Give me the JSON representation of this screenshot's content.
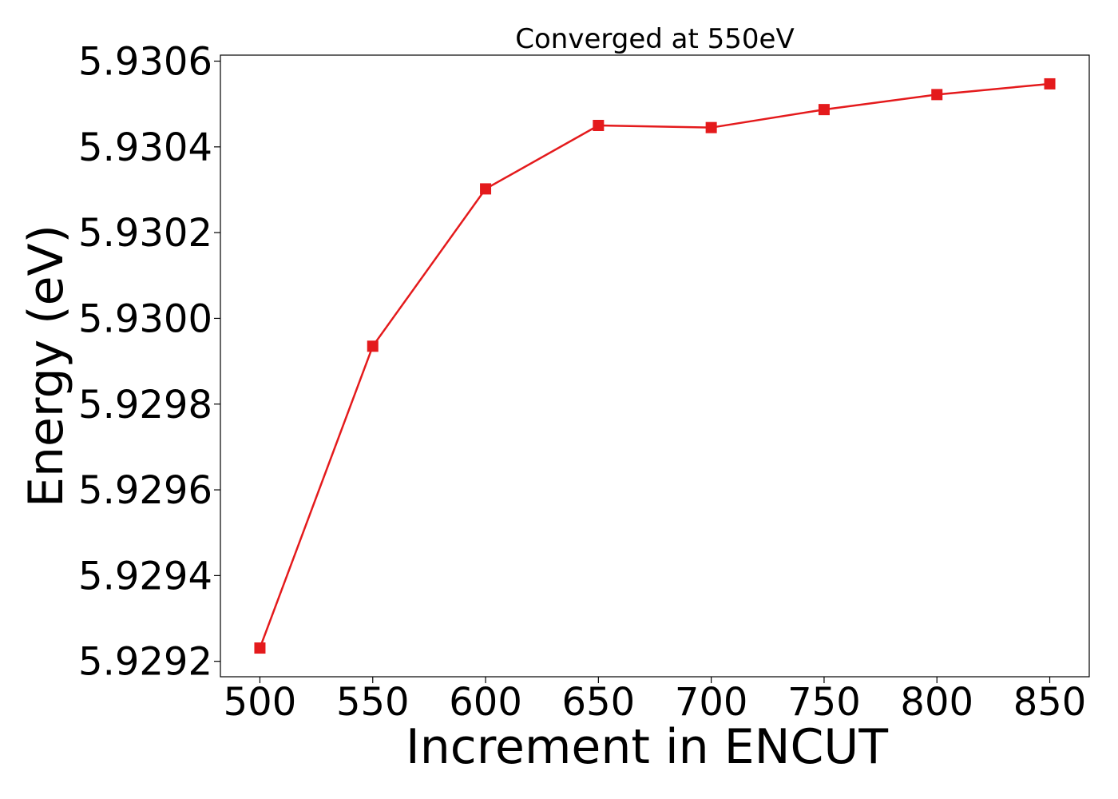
{
  "chart_data": {
    "type": "line",
    "title": "Converged at 550eV",
    "xlabel": "Increment in ENCUT",
    "ylabel": "Energy (eV)",
    "x": [
      500,
      550,
      600,
      650,
      700,
      750,
      800,
      850
    ],
    "series": [
      {
        "values": [
          5.929231,
          5.929935,
          5.930302,
          5.93045,
          5.930445,
          5.930487,
          5.930522,
          5.930547
        ],
        "color": "#e41a1c",
        "marker": "square"
      }
    ],
    "xticks": [
      500,
      550,
      600,
      650,
      700,
      750,
      800,
      850
    ],
    "xtick_labels": [
      "500",
      "550",
      "600",
      "650",
      "700",
      "750",
      "800",
      "850"
    ],
    "yticks": [
      5.9292,
      5.9294,
      5.9296,
      5.9298,
      5.93,
      5.9302,
      5.9304,
      5.9306
    ],
    "ytick_labels": [
      "5.9292",
      "5.9294",
      "5.9296",
      "5.9298",
      "5.9300",
      "5.9302",
      "5.9304",
      "5.9306"
    ],
    "xlim": [
      482.5,
      867.5
    ],
    "ylim": [
      5.929164,
      5.930614
    ],
    "grid": false,
    "legend": "none"
  }
}
